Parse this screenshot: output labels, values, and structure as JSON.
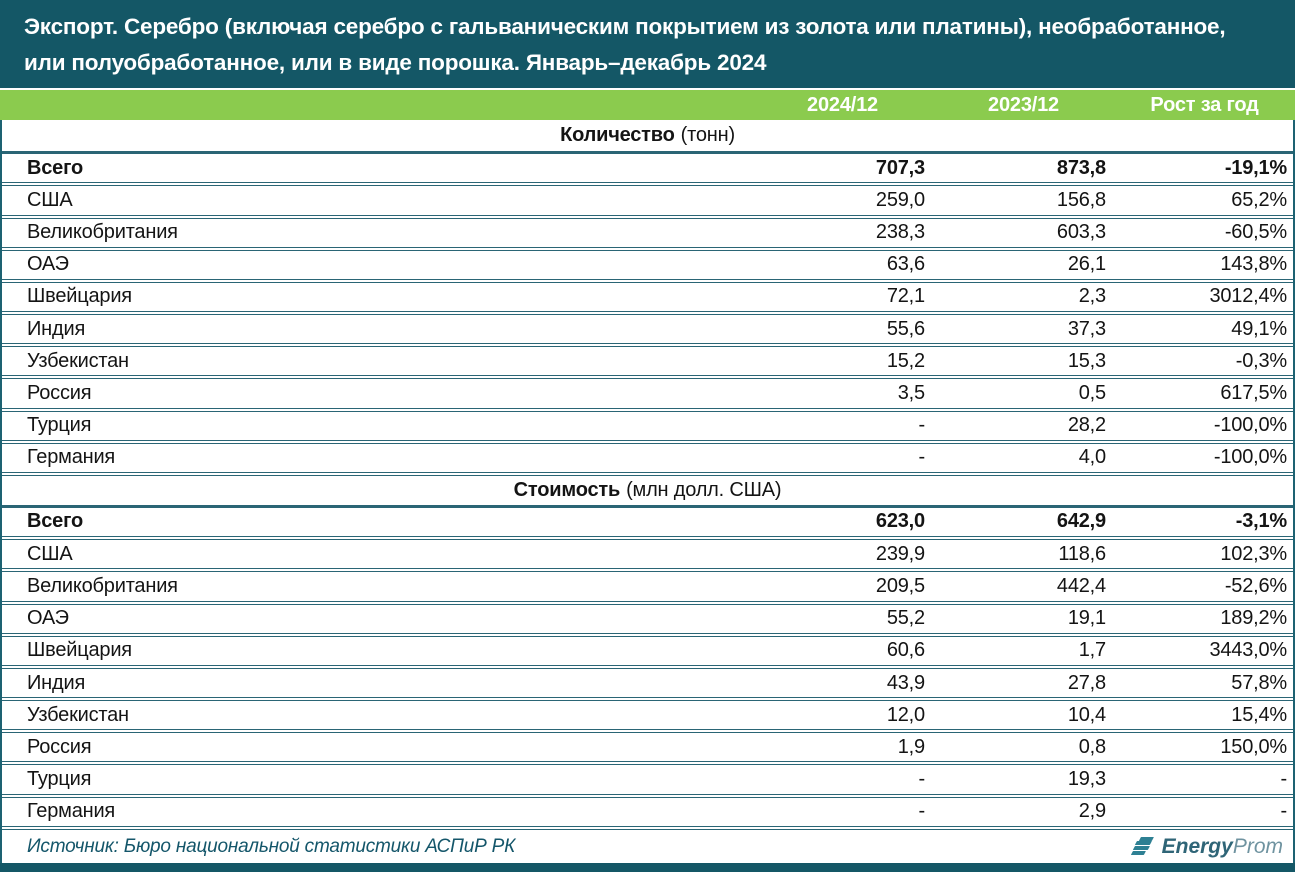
{
  "header": {
    "title_line1": "Экспорт. Серебро (включая серебро с гальваническим покрытием из золота или платины), необработанное,",
    "title_line2": "или полуобработанное, или в виде порошка. Январь–декабрь 2024"
  },
  "column_headers": [
    "2024/12",
    "2023/12",
    "Рост за год"
  ],
  "chart_data": {
    "type": "table",
    "title": "Экспорт. Серебро (включая серебро с гальваническим покрытием из золота или платины), необработанное, или полуобработанное, или в виде порошка. Январь–декабрь 2024",
    "columns": [
      "2024/12",
      "2023/12",
      "Рост за год"
    ],
    "sections": [
      {
        "heading": "Количество",
        "unit": "(тонн)",
        "rows": [
          {
            "label": "Всего",
            "v2024": "707,3",
            "v2023": "873,8",
            "growth": "-19,1%"
          },
          {
            "label": "США",
            "v2024": "259,0",
            "v2023": "156,8",
            "growth": "65,2%"
          },
          {
            "label": "Великобритания",
            "v2024": "238,3",
            "v2023": "603,3",
            "growth": "-60,5%"
          },
          {
            "label": "ОАЭ",
            "v2024": "63,6",
            "v2023": "26,1",
            "growth": "143,8%"
          },
          {
            "label": "Швейцария",
            "v2024": "72,1",
            "v2023": "2,3",
            "growth": "3012,4%"
          },
          {
            "label": "Индия",
            "v2024": "55,6",
            "v2023": "37,3",
            "growth": "49,1%"
          },
          {
            "label": "Узбекистан",
            "v2024": "15,2",
            "v2023": "15,3",
            "growth": "-0,3%"
          },
          {
            "label": "Россия",
            "v2024": "3,5",
            "v2023": "0,5",
            "growth": "617,5%"
          },
          {
            "label": "Турция",
            "v2024": "-",
            "v2023": "28,2",
            "growth": "-100,0%"
          },
          {
            "label": "Германия",
            "v2024": "-",
            "v2023": "4,0",
            "growth": "-100,0%"
          }
        ]
      },
      {
        "heading": "Стоимость",
        "unit": "(млн долл. США)",
        "rows": [
          {
            "label": "Всего",
            "v2024": "623,0",
            "v2023": "642,9",
            "growth": "-3,1%"
          },
          {
            "label": "США",
            "v2024": "239,9",
            "v2023": "118,6",
            "growth": "102,3%"
          },
          {
            "label": "Великобритания",
            "v2024": "209,5",
            "v2023": "442,4",
            "growth": "-52,6%"
          },
          {
            "label": "ОАЭ",
            "v2024": "55,2",
            "v2023": "19,1",
            "growth": "189,2%"
          },
          {
            "label": "Швейцария",
            "v2024": "60,6",
            "v2023": "1,7",
            "growth": "3443,0%"
          },
          {
            "label": "Индия",
            "v2024": "43,9",
            "v2023": "27,8",
            "growth": "57,8%"
          },
          {
            "label": "Узбекистан",
            "v2024": "12,0",
            "v2023": "10,4",
            "growth": "15,4%"
          },
          {
            "label": "Россия",
            "v2024": "1,9",
            "v2023": "0,8",
            "growth": "150,0%"
          },
          {
            "label": "Турция",
            "v2024": "-",
            "v2023": "19,3",
            "growth": "-"
          },
          {
            "label": "Германия",
            "v2024": "-",
            "v2023": "2,9",
            "growth": "-"
          }
        ]
      }
    ]
  },
  "footer": {
    "source": "Источник: Бюро национальной статистики АСПиР РК",
    "logo_energy": "Energy",
    "logo_prom": "Prom"
  },
  "colors": {
    "teal_dark": "#145766",
    "green_header": "#8bcb4e",
    "separator_teal": "#2a6575",
    "logo_teal": "#2e8093"
  }
}
